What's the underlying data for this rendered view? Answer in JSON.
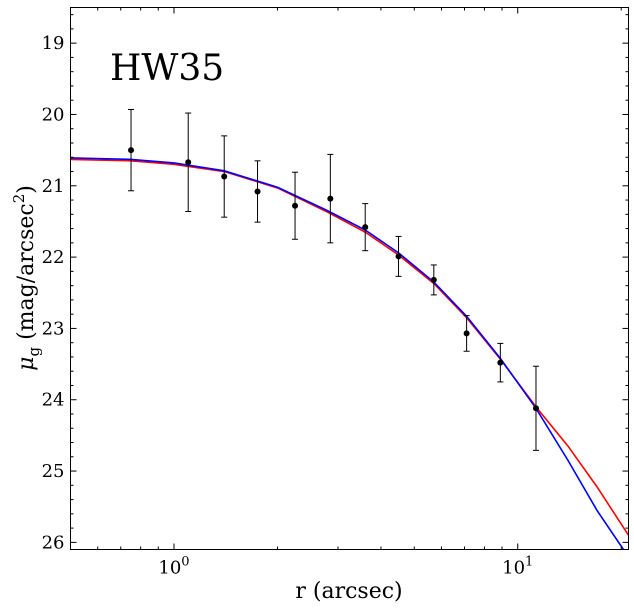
{
  "chart_data": {
    "type": "scatter",
    "title": "HW35",
    "xlabel": "r (arcsec)",
    "ylabel_parts": {
      "base": "μ",
      "sub": "g",
      "text": " (mag/arcsec",
      "sup": "2",
      "close": ")"
    },
    "xscale": "log",
    "xlim": [
      0.5,
      21.0
    ],
    "ylim": [
      26.1,
      18.5
    ],
    "x_major_ticks": [
      1,
      10
    ],
    "x_major_tick_labels": [
      {
        "base": "10",
        "exp": "0"
      },
      {
        "base": "10",
        "exp": "1"
      }
    ],
    "y_ticks": [
      19,
      20,
      21,
      22,
      23,
      24,
      25,
      26
    ],
    "y_tick_labels": [
      "19",
      "20",
      "21",
      "22",
      "23",
      "24",
      "25",
      "26"
    ],
    "grid": false,
    "points": [
      {
        "x": 0.75,
        "y": 20.5,
        "err": 0.57
      },
      {
        "x": 1.1,
        "y": 20.67,
        "err": 0.69
      },
      {
        "x": 1.4,
        "y": 20.87,
        "err": 0.57
      },
      {
        "x": 1.75,
        "y": 21.08,
        "err": 0.43
      },
      {
        "x": 2.25,
        "y": 21.28,
        "err": 0.47
      },
      {
        "x": 2.85,
        "y": 21.18,
        "err": 0.62
      },
      {
        "x": 3.6,
        "y": 21.58,
        "err": 0.33
      },
      {
        "x": 4.5,
        "y": 21.99,
        "err": 0.28
      },
      {
        "x": 5.7,
        "y": 22.32,
        "err": 0.21
      },
      {
        "x": 7.1,
        "y": 23.07,
        "err": 0.25
      },
      {
        "x": 8.9,
        "y": 23.48,
        "err": 0.27
      },
      {
        "x": 11.3,
        "y": 24.12,
        "err": 0.59
      }
    ],
    "series": [
      {
        "color": "#ff0000",
        "x": [
          0.5,
          0.75,
          1.0,
          1.4,
          2.0,
          2.8,
          3.6,
          4.5,
          5.7,
          7.1,
          8.9,
          11.3,
          14.0,
          17.0,
          21.0
        ],
        "y": [
          20.63,
          20.65,
          20.7,
          20.8,
          21.03,
          21.37,
          21.65,
          21.97,
          22.37,
          22.85,
          23.43,
          24.1,
          24.65,
          25.22,
          25.9
        ]
      },
      {
        "color": "#0000ff",
        "x": [
          0.5,
          0.75,
          1.0,
          1.4,
          2.0,
          2.8,
          3.6,
          4.5,
          5.7,
          7.1,
          8.9,
          11.3,
          14.0,
          17.0,
          20.3
        ],
        "y": [
          20.61,
          20.63,
          20.68,
          20.79,
          21.02,
          21.35,
          21.62,
          21.94,
          22.35,
          22.83,
          23.42,
          24.12,
          24.85,
          25.55,
          26.1
        ]
      }
    ]
  }
}
